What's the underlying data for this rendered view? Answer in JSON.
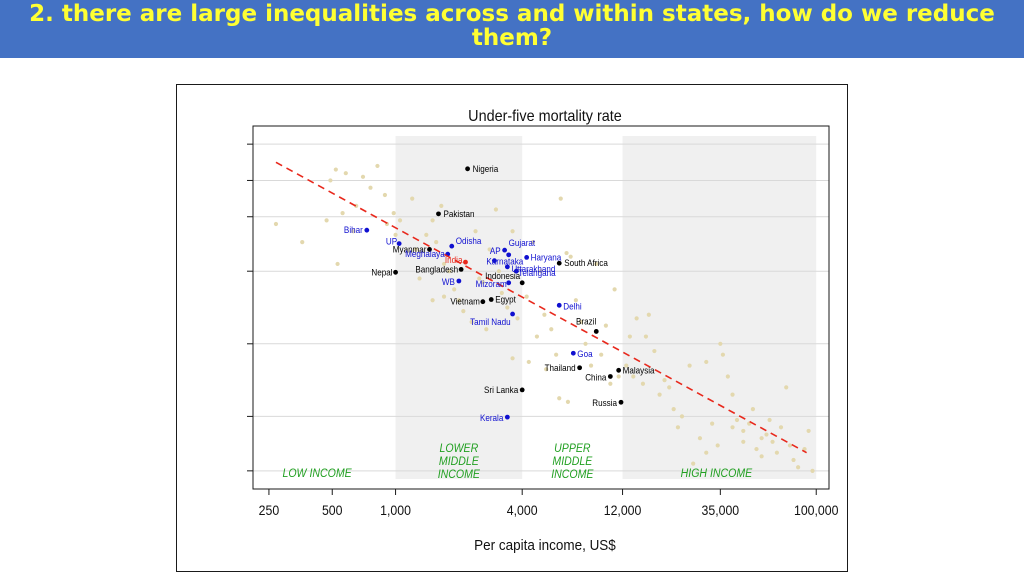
{
  "slide": {
    "title": "2.  there are large inequalities across and within states, how do we reduce them?"
  },
  "colors": {
    "banner": "#4472c4",
    "title": "#ffff33",
    "country": "#e3d8ae",
    "state": "#1010d0",
    "india": "#e8281c",
    "labelled_country": "#000000",
    "trend": "#e8281c",
    "band": "#f0f0f0",
    "income_label": "#22a022"
  },
  "chart_data": {
    "type": "scatter",
    "title": "Under-five mortality rate",
    "xlabel": "Per capita income, US$",
    "ylabel": "",
    "x_scale": "log",
    "xlim": [
      210,
      115000
    ],
    "x_ticks": [
      250,
      500,
      1000,
      4000,
      12000,
      35000,
      100000
    ],
    "x_tick_labels": [
      "250",
      "500",
      "1,000",
      "4,000",
      "12,000",
      "35,000",
      "100,000"
    ],
    "ylim": [
      0,
      1
    ],
    "y_scale": "log (tick labels not shown)",
    "y_ticks": [
      0.05,
      0.2,
      0.4,
      0.6,
      0.75,
      0.85,
      0.95
    ],
    "grid": true,
    "income_bands": [
      {
        "label": "LOW INCOME",
        "from": 210,
        "to": 1000,
        "shaded": false
      },
      {
        "label": "LOWER\nMIDDLE\nINCOME",
        "from": 1000,
        "to": 4000,
        "shaded": true
      },
      {
        "label": "UPPER\nMIDDLE\nINCOME",
        "from": 4000,
        "to": 12000,
        "shaded": false
      },
      {
        "label": "HIGH INCOME",
        "from": 12000,
        "to": 100000,
        "shaded": true
      }
    ],
    "trend_line": {
      "from": [
        270,
        0.9
      ],
      "to": [
        90000,
        0.1
      ]
    },
    "series": [
      {
        "group": "labelled countries",
        "points": [
          {
            "label": "Nigeria",
            "x": 2200,
            "y": 0.882
          },
          {
            "label": "Pakistan",
            "x": 1600,
            "y": 0.758
          },
          {
            "label": "Myanmar",
            "x": 1450,
            "y": 0.66
          },
          {
            "label": "Bangladesh",
            "x": 2050,
            "y": 0.605
          },
          {
            "label": "Nepal",
            "x": 1000,
            "y": 0.597
          },
          {
            "label": "South Africa",
            "x": 6000,
            "y": 0.622
          },
          {
            "label": "Indonesia",
            "x": 4000,
            "y": 0.568
          },
          {
            "label": "Egypt",
            "x": 2850,
            "y": 0.522
          },
          {
            "label": "Vietnam",
            "x": 2600,
            "y": 0.516
          },
          {
            "label": "Brazil",
            "x": 9000,
            "y": 0.434
          },
          {
            "label": "Thailand",
            "x": 7500,
            "y": 0.334
          },
          {
            "label": "Malaysia",
            "x": 11500,
            "y": 0.327
          },
          {
            "label": "China",
            "x": 10500,
            "y": 0.31
          },
          {
            "label": "Sri Lanka",
            "x": 4000,
            "y": 0.273
          },
          {
            "label": "Russia",
            "x": 11800,
            "y": 0.239
          }
        ]
      },
      {
        "group": "Indian states",
        "points": [
          {
            "label": "Bihar",
            "x": 730,
            "y": 0.713
          },
          {
            "label": "UP",
            "x": 1040,
            "y": 0.676
          },
          {
            "label": "Odisha",
            "x": 1850,
            "y": 0.669
          },
          {
            "label": "Meghalaya",
            "x": 1770,
            "y": 0.647
          },
          {
            "label": "AP",
            "x": 3450,
            "y": 0.645
          },
          {
            "label": "Gujarat",
            "x": 3300,
            "y": 0.658
          },
          {
            "label": "Haryana",
            "x": 4200,
            "y": 0.638
          },
          {
            "label": "Uttarakhand",
            "x": 3400,
            "y": 0.612
          },
          {
            "label": "Karnataka",
            "x": 2950,
            "y": 0.629
          },
          {
            "label": "Telangana",
            "x": 3750,
            "y": 0.6
          },
          {
            "label": "WB",
            "x": 2000,
            "y": 0.573
          },
          {
            "label": "Mizoram",
            "x": 3450,
            "y": 0.568
          },
          {
            "label": "Delhi",
            "x": 6000,
            "y": 0.506
          },
          {
            "label": "Tamil Nadu",
            "x": 3600,
            "y": 0.482
          },
          {
            "label": "Goa",
            "x": 7000,
            "y": 0.374
          },
          {
            "label": "Kerala",
            "x": 3400,
            "y": 0.198
          }
        ]
      },
      {
        "group": "India",
        "points": [
          {
            "label": "India",
            "x": 2150,
            "y": 0.625
          }
        ]
      }
    ],
    "unlabelled_points": [
      [
        270,
        0.73
      ],
      [
        360,
        0.68
      ],
      [
        470,
        0.74
      ],
      [
        490,
        0.85
      ],
      [
        520,
        0.88
      ],
      [
        580,
        0.87
      ],
      [
        650,
        0.78
      ],
      [
        560,
        0.76
      ],
      [
        700,
        0.86
      ],
      [
        760,
        0.83
      ],
      [
        820,
        0.89
      ],
      [
        890,
        0.81
      ],
      [
        910,
        0.73
      ],
      [
        980,
        0.76
      ],
      [
        1000,
        0.7
      ],
      [
        630,
        0.71
      ],
      [
        530,
        0.62
      ],
      [
        1050,
        0.74
      ],
      [
        1200,
        0.8
      ],
      [
        1250,
        0.66
      ],
      [
        1400,
        0.7
      ],
      [
        1500,
        0.74
      ],
      [
        1560,
        0.68
      ],
      [
        1650,
        0.78
      ],
      [
        1700,
        0.62
      ],
      [
        1800,
        0.6
      ],
      [
        1900,
        0.55
      ],
      [
        2000,
        0.52
      ],
      [
        2100,
        0.49
      ],
      [
        2300,
        0.46
      ],
      [
        2400,
        0.71
      ],
      [
        2500,
        0.58
      ],
      [
        2600,
        0.57
      ],
      [
        2700,
        0.44
      ],
      [
        2800,
        0.66
      ],
      [
        3000,
        0.77
      ],
      [
        3100,
        0.6
      ],
      [
        3200,
        0.54
      ],
      [
        3400,
        0.5
      ],
      [
        3600,
        0.71
      ],
      [
        3800,
        0.47
      ],
      [
        1300,
        0.58
      ],
      [
        1500,
        0.52
      ],
      [
        1700,
        0.53
      ],
      [
        4200,
        0.53
      ],
      [
        4300,
        0.35
      ],
      [
        4500,
        0.68
      ],
      [
        4700,
        0.42
      ],
      [
        4900,
        0.6
      ],
      [
        5100,
        0.48
      ],
      [
        5500,
        0.44
      ],
      [
        5800,
        0.37
      ],
      [
        6100,
        0.8
      ],
      [
        6500,
        0.65
      ],
      [
        6800,
        0.64
      ],
      [
        7200,
        0.52
      ],
      [
        7600,
        0.46
      ],
      [
        8000,
        0.4
      ],
      [
        8500,
        0.34
      ],
      [
        9000,
        0.62
      ],
      [
        9500,
        0.37
      ],
      [
        10000,
        0.45
      ],
      [
        10500,
        0.29
      ],
      [
        11000,
        0.55
      ],
      [
        11500,
        0.31
      ],
      [
        6000,
        0.25
      ],
      [
        6600,
        0.24
      ],
      [
        5200,
        0.33
      ],
      [
        3600,
        0.36
      ],
      [
        12500,
        0.34
      ],
      [
        13000,
        0.42
      ],
      [
        13500,
        0.31
      ],
      [
        14000,
        0.47
      ],
      [
        15000,
        0.29
      ],
      [
        15500,
        0.42
      ],
      [
        16000,
        0.48
      ],
      [
        17000,
        0.38
      ],
      [
        18000,
        0.26
      ],
      [
        19000,
        0.3
      ],
      [
        20000,
        0.28
      ],
      [
        21000,
        0.22
      ],
      [
        22000,
        0.17
      ],
      [
        23000,
        0.2
      ],
      [
        25000,
        0.34
      ],
      [
        28000,
        0.14
      ],
      [
        30000,
        0.1
      ],
      [
        32000,
        0.18
      ],
      [
        34000,
        0.12
      ],
      [
        35000,
        0.4
      ],
      [
        36000,
        0.37
      ],
      [
        38000,
        0.31
      ],
      [
        40000,
        0.26
      ],
      [
        42000,
        0.19
      ],
      [
        45000,
        0.13
      ],
      [
        48000,
        0.18
      ],
      [
        50000,
        0.22
      ],
      [
        52000,
        0.11
      ],
      [
        55000,
        0.09
      ],
      [
        58000,
        0.15
      ],
      [
        60000,
        0.19
      ],
      [
        62000,
        0.13
      ],
      [
        65000,
        0.1
      ],
      [
        68000,
        0.17
      ],
      [
        72000,
        0.28
      ],
      [
        75000,
        0.12
      ],
      [
        78000,
        0.08
      ],
      [
        82000,
        0.06
      ],
      [
        88000,
        0.11
      ],
      [
        92000,
        0.16
      ],
      [
        96000,
        0.05
      ],
      [
        40000,
        0.17
      ],
      [
        45000,
        0.16
      ],
      [
        55000,
        0.14
      ],
      [
        30000,
        0.35
      ],
      [
        26000,
        0.07
      ]
    ]
  }
}
